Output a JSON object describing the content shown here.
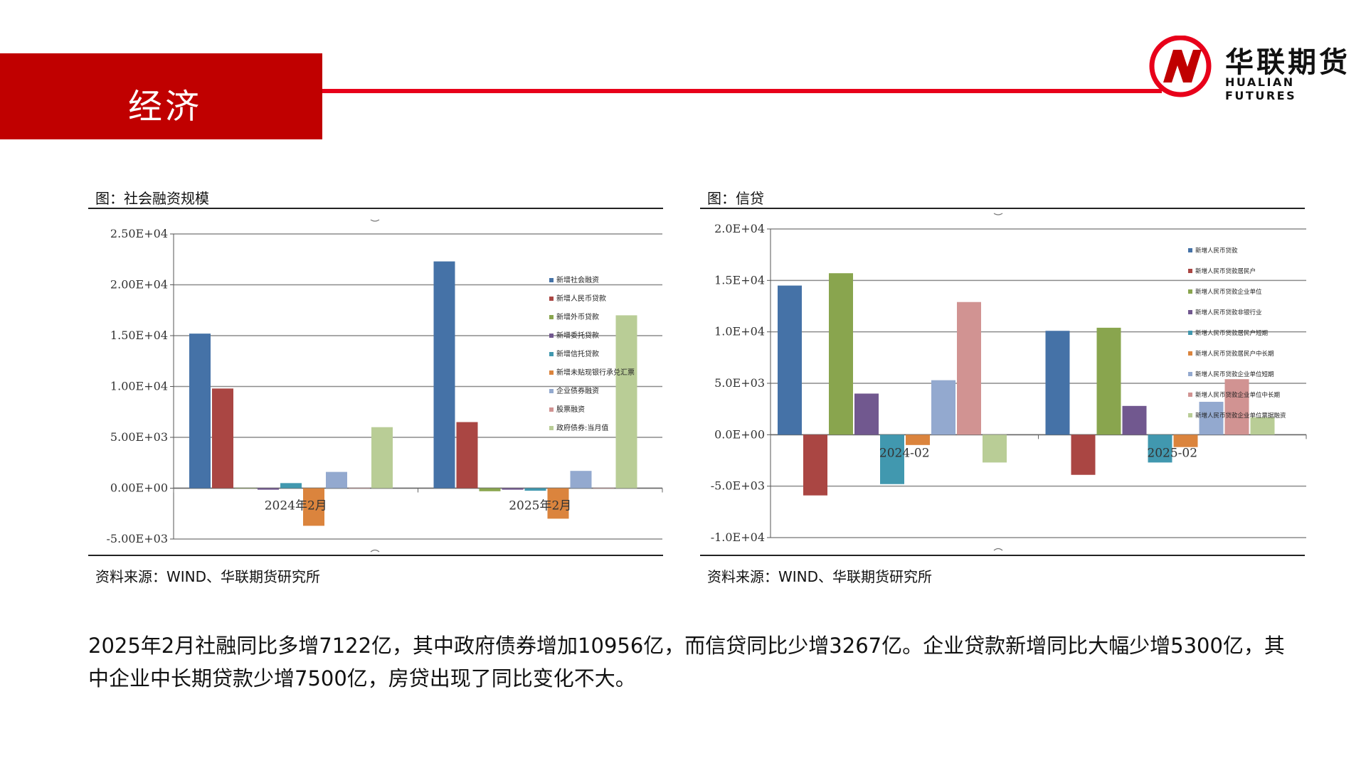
{
  "header": {
    "title": "经济"
  },
  "logo": {
    "name": "华联期货",
    "en": "HUALIAN FUTURES",
    "colors": {
      "ring": "#e8001a",
      "mark": "#c00000"
    }
  },
  "left_panel": {
    "title": "图：社会融资规模",
    "source": "资料来源：WIND、华联期货研究所"
  },
  "right_panel": {
    "title": "图：信贷",
    "source": "资料来源：WIND、华联期货研究所"
  },
  "description": "2025年2月社融同比多增7122亿，其中政府债券增加10956亿，而信贷同比少增3267亿。企业贷款新增同比大幅少增5300亿，其中企业中长期贷款少增7500亿，房贷出现了同比变化不大。",
  "chart_data": [
    {
      "type": "bar",
      "title": "",
      "categories": [
        "2024年2月",
        "2025年2月"
      ],
      "ylim": [
        -5000,
        25000
      ],
      "yticks": [
        "2.50E+04",
        "2.00E+04",
        "1.50E+04",
        "1.00E+04",
        "5.00E+03",
        "0.00E+00",
        "-5.00E+03"
      ],
      "legend_position": "right",
      "grid": true,
      "series": [
        {
          "name": "新增社会融资",
          "color": "#4572a7",
          "values": [
            15200,
            22300
          ]
        },
        {
          "name": "新增人民币贷款",
          "color": "#aa4643",
          "values": [
            9800,
            6500
          ]
        },
        {
          "name": "新增外币贷款",
          "color": "#89a54e",
          "values": [
            0,
            -300
          ]
        },
        {
          "name": "新增委托贷款",
          "color": "#71588f",
          "values": [
            -150,
            -150
          ]
        },
        {
          "name": "新增信托贷款",
          "color": "#4198af",
          "values": [
            500,
            -250
          ]
        },
        {
          "name": "新增未贴现银行承兑汇票",
          "color": "#db843d",
          "values": [
            -3700,
            -3000
          ]
        },
        {
          "name": "企业债券融资",
          "color": "#93a9cf",
          "values": [
            1600,
            1700
          ]
        },
        {
          "name": "股票融资",
          "color": "#d19392",
          "values": [
            0,
            0
          ]
        },
        {
          "name": "政府债券:当月值",
          "color": "#b9cd96",
          "values": [
            6000,
            17000
          ]
        }
      ]
    },
    {
      "type": "bar",
      "title": "",
      "categories": [
        "2024-02",
        "2025-02"
      ],
      "ylim": [
        -10000,
        20000
      ],
      "yticks": [
        "2.0E+04",
        "1.5E+04",
        "1.0E+04",
        "5.0E+03",
        "0.0E+00",
        "-5.0E+03",
        "-1.0E+04"
      ],
      "legend_position": "right",
      "grid": true,
      "series": [
        {
          "name": "新增人民币贷款",
          "color": "#4572a7",
          "values": [
            14500,
            10100
          ]
        },
        {
          "name": "新增人民币贷款居民户",
          "color": "#aa4643",
          "values": [
            -5900,
            -3900
          ]
        },
        {
          "name": "新增人民币贷款企业单位",
          "color": "#89a54e",
          "values": [
            15700,
            10400
          ]
        },
        {
          "name": "新增人民币贷款非银行业",
          "color": "#71588f",
          "values": [
            4000,
            2800
          ]
        },
        {
          "name": "新增人民币贷款居民户短期",
          "color": "#4198af",
          "values": [
            -4800,
            -2700
          ]
        },
        {
          "name": "新增人民币贷款居民户中长期",
          "color": "#db843d",
          "values": [
            -1000,
            -1200
          ]
        },
        {
          "name": "新增人民币贷款企业单位短期",
          "color": "#93a9cf",
          "values": [
            5300,
            3200
          ]
        },
        {
          "name": "新增人民币贷款企业单位中长期",
          "color": "#d19392",
          "values": [
            12900,
            5400
          ]
        },
        {
          "name": "新增人民币贷款企业单位票据融资",
          "color": "#b9cd96",
          "values": [
            -2700,
            1700
          ]
        }
      ]
    }
  ]
}
